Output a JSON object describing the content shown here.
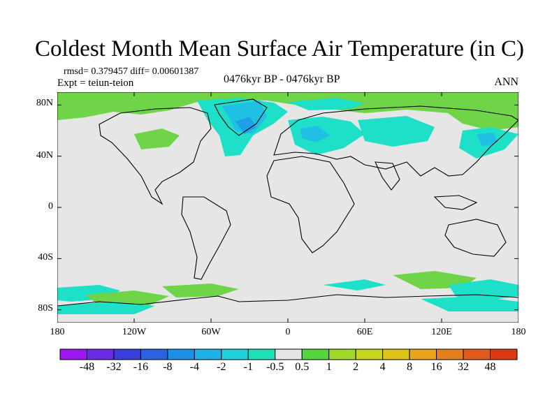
{
  "figure": {
    "title": "Coldest Month Mean Surface Air Temperature (in C)",
    "stats_line": "rmsd= 0.379457 diff= 0.00601387",
    "expt_line": "Expt = teiun-teion",
    "experiment_label": "0476kyr BP - 0476kyr BP",
    "season_label": "ANN"
  },
  "axes": {
    "lat_ticks": [
      "80N",
      "40N",
      "0",
      "40S",
      "80S"
    ],
    "lon_ticks": [
      "180",
      "120W",
      "60W",
      "0",
      "60E",
      "120E",
      "180"
    ]
  },
  "colorbar": {
    "labels": [
      "-48",
      "-32",
      "-16",
      "-8",
      "-4",
      "-2",
      "-1",
      "-0.5",
      "0.5",
      "1",
      "2",
      "4",
      "8",
      "16",
      "32",
      "48"
    ],
    "colors": [
      "#9b19ef",
      "#6b2ae3",
      "#3a3fd9",
      "#2a62e0",
      "#1f8ee5",
      "#1fb1e3",
      "#1dd3d9",
      "#1de0b6",
      "#e6e6e6",
      "#54d43d",
      "#a2d82c",
      "#c8d51f",
      "#dcc41a",
      "#e6a51a",
      "#e3801e",
      "#e05a1e",
      "#dc3816"
    ]
  },
  "map_colors": {
    "ocean_land_neutral": "#e6e6e6",
    "warm_anomaly": "#6fd447",
    "cool_anomaly": "#1ee0c8",
    "cooler_anomaly": "#1fc0e3",
    "coolest_anomaly": "#1ea0e6"
  }
}
